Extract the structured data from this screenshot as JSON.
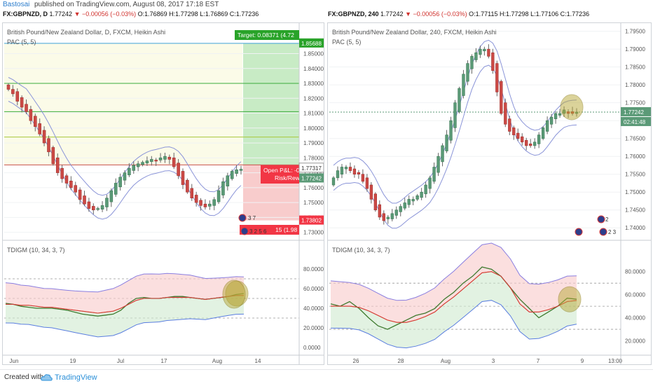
{
  "header": {
    "user": "Bastosai",
    "published": " published on TradingView.com, August 08, 2017 17:18 EST"
  },
  "left_ohlc": {
    "symbol": "FX:GBPNZD, D",
    "price": "1.77242",
    "change": "−0.00056 (−0.03%)",
    "o": "O:1.76869",
    "h": "H:1.77298",
    "l": "L:1.76869",
    "c": "C:1.77236"
  },
  "right_ohlc": {
    "symbol": "FX:GBPNZD, 240",
    "price": "1.77242",
    "change": "−0.00056 (−0.03%)",
    "o": "O:1.77115",
    "h": "H:1.77298",
    "l": "L:1.77106",
    "c": "C:1.77236"
  },
  "left_chart": {
    "title": "British Pound/New Zealand Dollar, D, FXCM, Heikin Ashi",
    "indicator": "PAC (5, 5)",
    "y_ticks": [
      "1.85000",
      "1.84000",
      "1.83000",
      "1.82000",
      "1.81000",
      "1.80000",
      "1.79000",
      "1.78000",
      "1.77000",
      "1.76000",
      "1.75000",
      "1.74000",
      "1.73000"
    ],
    "ylim": [
      1.727,
      1.862
    ],
    "x_ticks": [
      "Jun",
      "19",
      "Jul",
      "17",
      "Aug",
      "14"
    ],
    "target_label": "Target: 0.08371 (4.72",
    "target_price": "1.85688",
    "open_pl": "Open P&L: -0",
    "risk_reward": "Risk/Rew",
    "price_tag1": "1.77317",
    "price_tag2": "1.77242",
    "stop_label": "15 (1.98",
    "stop_price": "1.73802",
    "event_labels": [
      "3 7",
      "3 2 5 6"
    ],
    "horizontal_levels": [
      1.8569,
      1.83,
      1.811,
      1.794,
      1.7753
    ],
    "colors": {
      "up": "#5b9a77",
      "down": "#cc4a46",
      "pac": "#8a94d8",
      "target": "#29a329",
      "stop": "#f23645"
    }
  },
  "right_chart": {
    "title": "British Pound/New Zealand Dollar, 240, FXCM, Heikin Ashi",
    "indicator": "PAC (5, 5)",
    "y_ticks": [
      "1.79500",
      "1.79000",
      "1.78500",
      "1.78000",
      "1.77500",
      "1.77000",
      "1.76500",
      "1.76000",
      "1.75500",
      "1.75000",
      "1.74500",
      "1.74000"
    ],
    "ylim": [
      1.7375,
      1.7965
    ],
    "x_ticks": [
      "26",
      "28",
      "Aug",
      "3",
      "7",
      "9",
      "13:00"
    ],
    "price_tag": "1.77242",
    "countdown": "02:41:48",
    "event_labels": [
      "2",
      "2 3"
    ]
  },
  "left_osc": {
    "title": "TDIGM (10, 34, 3, 7)",
    "y_ticks": [
      "80.0000",
      "60.0000",
      "40.0000",
      "20.0000",
      "0.0000"
    ],
    "ylim": [
      -5,
      95
    ]
  },
  "right_osc": {
    "title": "TDIGM (10, 34, 3, 7)",
    "y_ticks": [
      "80.0000",
      "60.0000",
      "40.0000",
      "20.0000"
    ],
    "ylim": [
      10,
      95
    ]
  },
  "footer": {
    "created": "Created with",
    "brand": "TradingView"
  },
  "chart_data": [
    {
      "type": "candlestick",
      "title": "British Pound/New Zealand Dollar, D, FXCM, Heikin Ashi",
      "x_ticks": [
        "Jun",
        "19",
        "Jul",
        "17",
        "Aug",
        "14"
      ],
      "ylim": [
        1.727,
        1.862
      ],
      "close_series": [
        1.826,
        1.823,
        1.818,
        1.814,
        1.811,
        1.805,
        1.801,
        1.796,
        1.79,
        1.784,
        1.776,
        1.77,
        1.766,
        1.763,
        1.76,
        1.757,
        1.752,
        1.749,
        1.746,
        1.745,
        1.746,
        1.748,
        1.753,
        1.758,
        1.763,
        1.767,
        1.77,
        1.773,
        1.775,
        1.776,
        1.777,
        1.778,
        1.779,
        1.778,
        1.78,
        1.781,
        1.779,
        1.774,
        1.768,
        1.762,
        1.757,
        1.753,
        1.75,
        1.748,
        1.747,
        1.749,
        1.752,
        1.758,
        1.764,
        1.768,
        1.771,
        1.772,
        1.7724
      ]
    },
    {
      "type": "candlestick",
      "title": "British Pound/New Zealand Dollar, 240, FXCM, Heikin Ashi",
      "x_ticks": [
        "26",
        "28",
        "Aug",
        "3",
        "7",
        "9",
        "13:00"
      ],
      "ylim": [
        1.7375,
        1.7965
      ],
      "close_series": [
        1.754,
        1.756,
        1.757,
        1.757,
        1.756,
        1.755,
        1.755,
        1.753,
        1.751,
        1.748,
        1.745,
        1.743,
        1.742,
        1.743,
        1.744,
        1.745,
        1.746,
        1.747,
        1.748,
        1.748,
        1.749,
        1.75,
        1.752,
        1.754,
        1.757,
        1.76,
        1.763,
        1.766,
        1.77,
        1.775,
        1.779,
        1.783,
        1.786,
        1.788,
        1.789,
        1.79,
        1.79,
        1.788,
        1.784,
        1.778,
        1.772,
        1.769,
        1.767,
        1.766,
        1.765,
        1.764,
        1.763,
        1.763,
        1.764,
        1.766,
        1.768,
        1.77,
        1.771,
        1.772,
        1.772,
        1.773,
        1.772,
        1.772,
        1.7724
      ]
    },
    {
      "type": "line",
      "title": "TDIGM (10, 34, 3, 7)",
      "ylim": [
        -5,
        95
      ],
      "series": [
        {
          "name": "",
          "values": [
            45,
            44,
            42,
            41,
            40,
            40,
            40,
            39,
            38,
            36,
            34,
            33,
            32,
            33,
            34,
            38,
            45,
            50,
            51,
            50,
            50,
            51,
            52,
            52,
            51,
            50,
            49,
            50,
            51,
            52,
            54,
            55
          ]
        },
        {
          "name": "",
          "values": [
            44,
            44,
            43,
            43,
            42,
            41,
            41,
            40,
            39,
            38,
            37,
            36,
            35,
            36,
            37,
            40,
            44,
            48,
            50,
            50,
            50,
            51,
            51,
            51,
            51,
            50,
            49,
            50,
            51,
            52,
            53,
            53
          ]
        }
      ]
    },
    {
      "type": "line",
      "title": "TDIGM (10, 34, 3, 7)",
      "ylim": [
        10,
        95
      ],
      "series": [
        {
          "name": "",
          "values": [
            52,
            50,
            54,
            48,
            40,
            33,
            30,
            34,
            38,
            42,
            44,
            48,
            56,
            62,
            70,
            76,
            84,
            82,
            76,
            66,
            56,
            48,
            40,
            45,
            50,
            57,
            56
          ]
        },
        {
          "name": "",
          "values": [
            50,
            50,
            50,
            49,
            46,
            42,
            38,
            36,
            36,
            38,
            41,
            45,
            52,
            58,
            65,
            72,
            79,
            80,
            76,
            66,
            52,
            45,
            45,
            47,
            50,
            54,
            55
          ]
        }
      ]
    }
  ]
}
